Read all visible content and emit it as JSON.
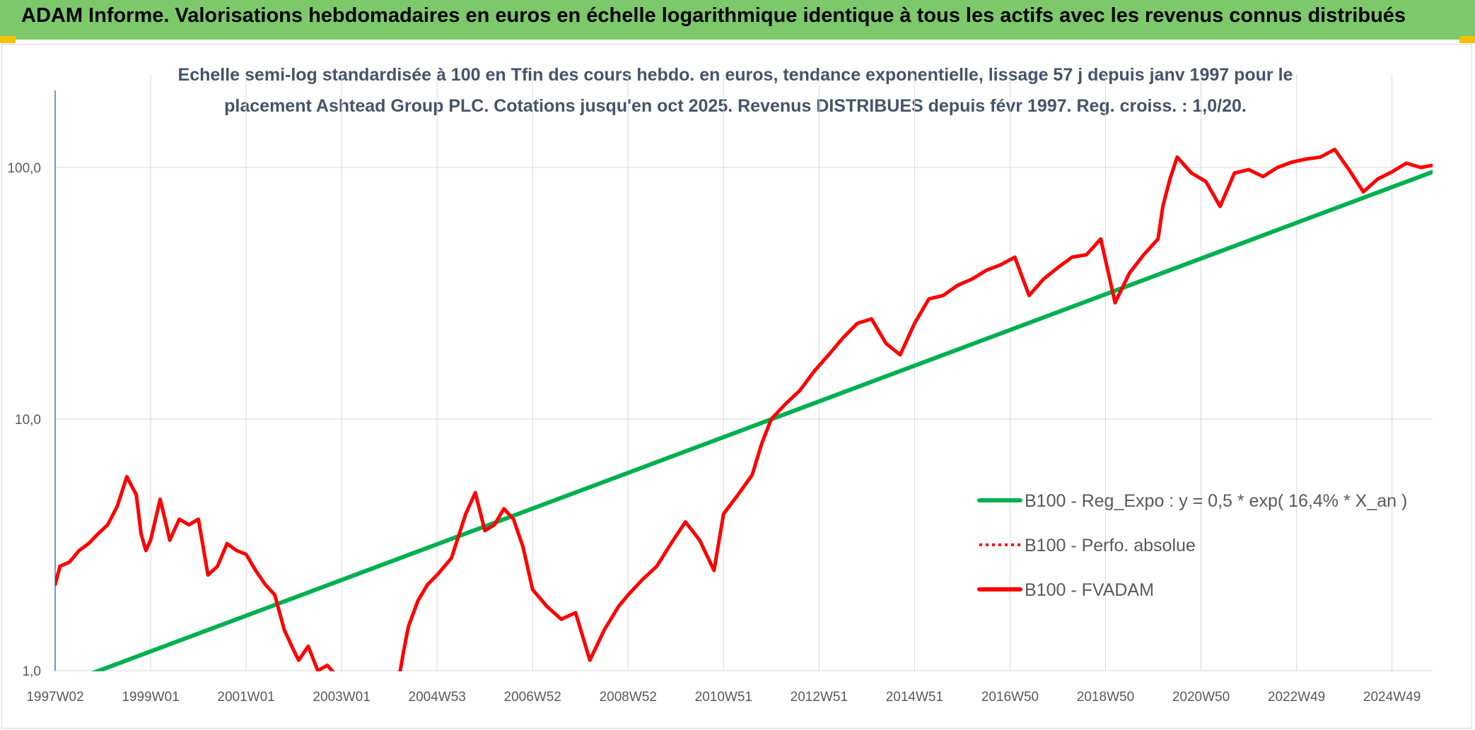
{
  "header": {
    "title": "ADAM Informe. Valorisations hebdomadaires en euros en échelle logarithmique identique à tous les actifs avec les revenus connus distribués"
  },
  "colors": {
    "banner": "#7dc86b",
    "regression": "#00b050",
    "fvadam": "#ff0000",
    "perfo": "#ff0000",
    "axis": "#4472c4",
    "grid": "#d9d9d9"
  },
  "chart_data": {
    "type": "line",
    "title_lines": [
      "Echelle semi-log standardisée à 100 en Tfin des cours hebdo. en euros, tendance exponentielle, lissage 57 j depuis janv 1997 pour le",
      "placement Ashtead Group PLC. Cotations jusqu'en oct 2025. Revenus DISTRIBUES depuis févr 1997. Reg. croiss. : 1,0/20."
    ],
    "y_scale": "log",
    "ylim": [
      1,
      200
    ],
    "xlim": [
      1997.0,
      2025.85
    ],
    "y_ticks": [
      {
        "value": 1,
        "label": "1,0"
      },
      {
        "value": 10,
        "label": "10,0"
      },
      {
        "value": 100,
        "label": "100,0"
      }
    ],
    "x_ticks": [
      {
        "value": 1997.0,
        "label": "1997W02"
      },
      {
        "value": 1999.0,
        "label": "1999W01"
      },
      {
        "value": 2001.0,
        "label": "2001W01"
      },
      {
        "value": 2003.0,
        "label": "2003W01"
      },
      {
        "value": 2005.0,
        "label": "2004W53"
      },
      {
        "value": 2007.0,
        "label": "2006W52"
      },
      {
        "value": 2009.0,
        "label": "2008W52"
      },
      {
        "value": 2011.0,
        "label": "2010W51"
      },
      {
        "value": 2013.0,
        "label": "2012W51"
      },
      {
        "value": 2015.0,
        "label": "2014W51"
      },
      {
        "value": 2017.0,
        "label": "2016W50"
      },
      {
        "value": 2019.0,
        "label": "2018W50"
      },
      {
        "value": 2021.0,
        "label": "2020W50"
      },
      {
        "value": 2023.0,
        "label": "2022W49"
      },
      {
        "value": 2025.0,
        "label": "2024W49"
      }
    ],
    "grid": true,
    "legend_position": "right",
    "series": [
      {
        "name": "B100 - Reg_Expo : y = 0,5 * exp( 16,4% *  X_an )",
        "style": "solid",
        "x": [
          1997.0,
          2025.85
        ],
        "y": [
          0.86,
          96
        ]
      },
      {
        "name": "B100 - Perfo. absolue",
        "style": "dotted",
        "x": [],
        "y": []
      },
      {
        "name": "B100 - FVADAM",
        "style": "solid",
        "x": [
          1997.0,
          1997.1,
          1997.3,
          1997.5,
          1997.7,
          1997.9,
          1998.1,
          1998.3,
          1998.5,
          1998.7,
          1998.8,
          1998.9,
          1999.0,
          1999.2,
          1999.3,
          1999.4,
          1999.6,
          1999.8,
          2000.0,
          2000.2,
          2000.4,
          2000.6,
          2000.8,
          2001.0,
          2001.2,
          2001.4,
          2001.6,
          2001.8,
          2002.0,
          2002.1,
          2002.3,
          2002.5,
          2002.7,
          2002.9,
          2003.0,
          2003.15,
          2004.15,
          2004.3,
          2004.4,
          2004.6,
          2004.8,
          2005.0,
          2005.3,
          2005.6,
          2005.8,
          2006.0,
          2006.2,
          2006.4,
          2006.6,
          2006.8,
          2007.0,
          2007.3,
          2007.6,
          2007.9,
          2008.2,
          2008.5,
          2008.8,
          2009.0,
          2009.3,
          2009.6,
          2009.9,
          2010.2,
          2010.5,
          2010.8,
          2011.0,
          2011.3,
          2011.6,
          2011.8,
          2012.0,
          2012.3,
          2012.6,
          2012.9,
          2013.2,
          2013.5,
          2013.8,
          2014.1,
          2014.4,
          2014.7,
          2015.0,
          2015.3,
          2015.6,
          2015.9,
          2016.2,
          2016.5,
          2016.8,
          2017.1,
          2017.4,
          2017.7,
          2018.0,
          2018.3,
          2018.6,
          2018.9,
          2019.2,
          2019.5,
          2019.8,
          2020.1,
          2020.2,
          2020.35,
          2020.5,
          2020.8,
          2021.1,
          2021.4,
          2021.7,
          2022.0,
          2022.3,
          2022.6,
          2022.9,
          2023.2,
          2023.5,
          2023.8,
          2024.1,
          2024.4,
          2024.7,
          2025.0,
          2025.3,
          2025.6,
          2025.85
        ],
        "y": [
          2.2,
          2.6,
          2.7,
          3.0,
          3.2,
          3.5,
          3.8,
          4.5,
          5.9,
          5.0,
          3.5,
          3.0,
          3.3,
          4.8,
          4.0,
          3.3,
          4.0,
          3.8,
          4.0,
          2.4,
          2.6,
          3.2,
          3.0,
          2.9,
          2.5,
          2.2,
          2.0,
          1.45,
          1.2,
          1.1,
          1.25,
          1.0,
          1.05,
          0.95,
          0.85,
          0.78,
          0.82,
          1.2,
          1.5,
          1.9,
          2.2,
          2.4,
          2.8,
          4.2,
          5.1,
          3.6,
          3.8,
          4.4,
          4.0,
          3.1,
          2.1,
          1.8,
          1.6,
          1.7,
          1.1,
          1.45,
          1.8,
          2.0,
          2.3,
          2.6,
          3.2,
          3.9,
          3.3,
          2.5,
          4.2,
          5.0,
          6.0,
          8.0,
          10.0,
          11.5,
          13.0,
          15.5,
          18.0,
          21.0,
          24.0,
          25.0,
          20.0,
          18.0,
          24.0,
          30.0,
          31.0,
          34.0,
          36.0,
          39.0,
          41.0,
          44.0,
          31.0,
          36.0,
          40.0,
          44.0,
          45.0,
          52.0,
          29.0,
          38.0,
          45.0,
          52.0,
          70.0,
          90.0,
          110.0,
          95.0,
          88.0,
          70.0,
          95.0,
          98.0,
          92.0,
          100.0,
          105.0,
          108.0,
          110.0,
          118.0,
          98.0,
          80.0,
          90.0,
          96.0,
          104.0,
          100.0,
          102.0
        ]
      }
    ]
  }
}
